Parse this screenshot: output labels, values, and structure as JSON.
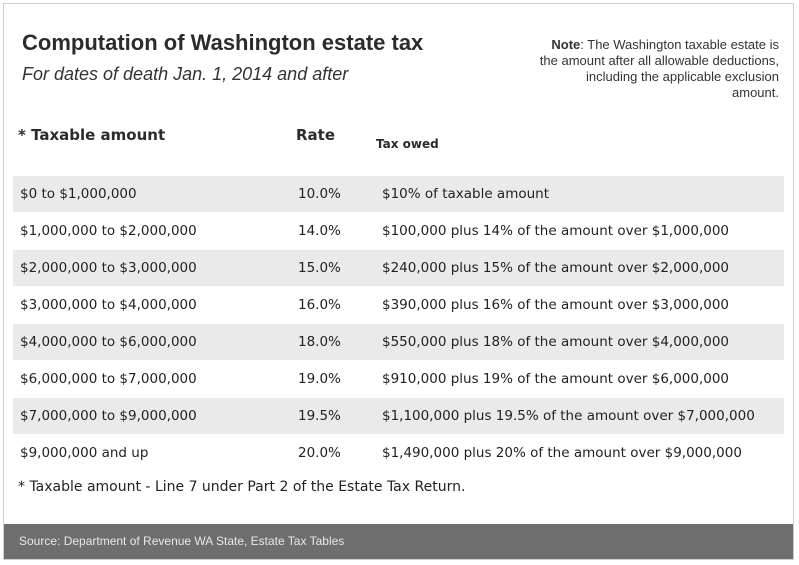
{
  "title": "Computation of Washington estate tax",
  "subtitle": "For dates of death Jan. 1, 2014 and after",
  "note": {
    "label": "Note",
    "text": ": The Washington taxable estate is the amount after all allowable deductions, including the applicable exclusion amount."
  },
  "colors": {
    "row_shade": "#eaeaea",
    "source_bar": "#6e6e6e"
  },
  "chart_data": {
    "type": "table",
    "columns": [
      "* Taxable amount",
      "Rate",
      "Tax owed"
    ],
    "rows": [
      [
        "$0 to $1,000,000",
        "10.0%",
        "$10% of taxable amount"
      ],
      [
        "$1,000,000 to $2,000,000",
        "14.0%",
        "$100,000 plus 14% of the amount over $1,000,000"
      ],
      [
        "$2,000,000 to $3,000,000",
        "15.0%",
        "$240,000 plus 15% of the amount over $2,000,000"
      ],
      [
        "$3,000,000 to $4,000,000",
        "16.0%",
        "$390,000 plus 16% of the amount over $3,000,000"
      ],
      [
        "$4,000,000 to $6,000,000",
        "18.0%",
        "$550,000 plus 18% of the amount over $4,000,000"
      ],
      [
        "$6,000,000 to $7,000,000",
        "19.0%",
        "$910,000 plus 19% of the amount over $6,000,000"
      ],
      [
        "$7,000,000 to $9,000,000",
        "19.5%",
        "$1,100,000 plus 19.5% of the amount over $7,000,000"
      ],
      [
        "$9,000,000 and up",
        "20.0%",
        "$1,490,000 plus 20% of the amount over $9,000,000"
      ]
    ]
  },
  "footnote": "* Taxable amount - Line 7 under Part 2 of the Estate Tax Return.",
  "source": "Source: Department of Revenue WA State, Estate Tax Tables"
}
